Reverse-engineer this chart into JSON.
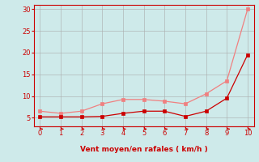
{
  "x": [
    0,
    1,
    2,
    3,
    4,
    5,
    6,
    7,
    8,
    9,
    10
  ],
  "y_rafales": [
    6.5,
    6.0,
    6.5,
    8.2,
    9.2,
    9.2,
    8.8,
    8.2,
    10.5,
    13.5,
    30.0
  ],
  "y_moyen": [
    5.2,
    5.2,
    5.2,
    5.3,
    6.0,
    6.5,
    6.5,
    5.3,
    6.5,
    9.5,
    19.5
  ],
  "color_rafales": "#f08080",
  "color_moyen": "#cc0000",
  "bg_color": "#ceeaea",
  "grid_color": "#aaaaaa",
  "xlabel": "Vent moyen/en rafales ( km/h )",
  "xlabel_color": "#cc0000",
  "axis_line_color": "#cc0000",
  "ylim": [
    3,
    31
  ],
  "xlim": [
    -0.3,
    10.3
  ],
  "yticks": [
    5,
    10,
    15,
    20,
    25,
    30
  ],
  "xticks": [
    0,
    1,
    2,
    3,
    4,
    5,
    6,
    7,
    8,
    9,
    10
  ],
  "tick_color": "#cc0000",
  "marker_size": 2.5
}
